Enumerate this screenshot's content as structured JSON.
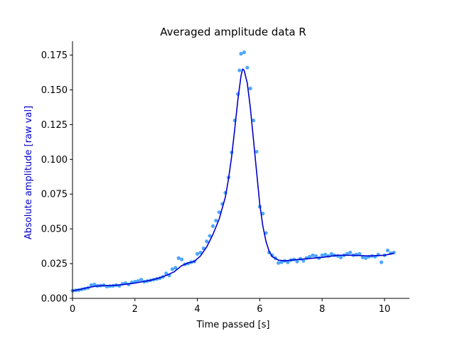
{
  "chart_data": {
    "type": "scatter",
    "title": "Averaged amplitude data R",
    "xlabel": "Time passed [s]",
    "ylabel": "Absolute amplitude [raw val]",
    "xlim": [
      0,
      10.8
    ],
    "ylim": [
      0,
      0.185
    ],
    "xticks": [
      0,
      2,
      4,
      6,
      8,
      10
    ],
    "xtick_labels": [
      "0",
      "2",
      "4",
      "6",
      "8",
      "10"
    ],
    "yticks": [
      0,
      0.025,
      0.05,
      0.075,
      0.1,
      0.125,
      0.15,
      0.175
    ],
    "ytick_labels": [
      "0.000",
      "0.025",
      "0.050",
      "0.075",
      "0.100",
      "0.125",
      "0.150",
      "0.175"
    ],
    "grid": false,
    "colors": {
      "points": "#4da6ff",
      "fit": "#0000cc",
      "ylabel": "#0000cc"
    },
    "series": [
      {
        "type": "scatter",
        "x": [
          0.0,
          0.1,
          0.2,
          0.3,
          0.4,
          0.5,
          0.6,
          0.7,
          0.8,
          0.9,
          1.0,
          1.1,
          1.2,
          1.3,
          1.4,
          1.5,
          1.6,
          1.7,
          1.8,
          1.9,
          2.0,
          2.1,
          2.2,
          2.3,
          2.4,
          2.5,
          2.6,
          2.7,
          2.8,
          2.9,
          3.0,
          3.1,
          3.2,
          3.3,
          3.4,
          3.5,
          3.6,
          3.7,
          3.8,
          3.9,
          4.0,
          4.1,
          4.2,
          4.3,
          4.4,
          4.5,
          4.6,
          4.7,
          4.8,
          4.9,
          5.0,
          5.1,
          5.2,
          5.3,
          5.35,
          5.4,
          5.5,
          5.6,
          5.7,
          5.8,
          5.9,
          6.0,
          6.1,
          6.2,
          6.3,
          6.4,
          6.5,
          6.6,
          6.7,
          6.8,
          6.9,
          7.0,
          7.1,
          7.2,
          7.3,
          7.4,
          7.5,
          7.6,
          7.7,
          7.8,
          7.9,
          8.0,
          8.1,
          8.2,
          8.3,
          8.4,
          8.5,
          8.6,
          8.7,
          8.8,
          8.9,
          9.0,
          9.1,
          9.2,
          9.3,
          9.4,
          9.5,
          9.6,
          9.7,
          9.8,
          9.9,
          10.0,
          10.1,
          10.2,
          10.3
        ],
        "y": [
          0.0055,
          0.0058,
          0.006,
          0.0065,
          0.007,
          0.0075,
          0.0095,
          0.01,
          0.009,
          0.0092,
          0.0095,
          0.0085,
          0.0088,
          0.009,
          0.0095,
          0.009,
          0.0105,
          0.011,
          0.01,
          0.0115,
          0.012,
          0.0125,
          0.0135,
          0.012,
          0.0125,
          0.013,
          0.0135,
          0.014,
          0.0145,
          0.0155,
          0.018,
          0.0165,
          0.021,
          0.022,
          0.029,
          0.028,
          0.0245,
          0.025,
          0.026,
          0.0265,
          0.032,
          0.033,
          0.036,
          0.041,
          0.045,
          0.052,
          0.056,
          0.062,
          0.068,
          0.076,
          0.087,
          0.105,
          0.128,
          0.147,
          0.164,
          0.176,
          0.177,
          0.166,
          0.151,
          0.128,
          0.1055,
          0.066,
          0.061,
          0.047,
          0.033,
          0.031,
          0.029,
          0.0255,
          0.026,
          0.027,
          0.026,
          0.0275,
          0.028,
          0.0265,
          0.0285,
          0.027,
          0.029,
          0.03,
          0.031,
          0.0305,
          0.029,
          0.031,
          0.0315,
          0.0305,
          0.032,
          0.031,
          0.0305,
          0.0295,
          0.031,
          0.032,
          0.033,
          0.031,
          0.0315,
          0.032,
          0.0295,
          0.029,
          0.03,
          0.0305,
          0.03,
          0.0315,
          0.026,
          0.031,
          0.0345,
          0.0325,
          0.033
        ]
      },
      {
        "type": "line",
        "x": [
          0.0,
          0.25,
          0.5,
          0.75,
          1.0,
          1.25,
          1.5,
          1.75,
          2.0,
          2.25,
          2.5,
          2.75,
          3.0,
          3.25,
          3.5,
          3.7,
          3.9,
          4.1,
          4.3,
          4.5,
          4.7,
          4.9,
          5.0,
          5.1,
          5.2,
          5.3,
          5.4,
          5.45,
          5.5,
          5.6,
          5.7,
          5.8,
          5.9,
          6.0,
          6.1,
          6.2,
          6.3,
          6.4,
          6.6,
          6.8,
          7.0,
          7.5,
          8.0,
          8.5,
          9.0,
          9.5,
          10.0,
          10.3
        ],
        "y": [
          0.0055,
          0.0065,
          0.0078,
          0.0088,
          0.0092,
          0.0093,
          0.0096,
          0.0103,
          0.011,
          0.012,
          0.013,
          0.0145,
          0.0165,
          0.019,
          0.0235,
          0.0255,
          0.0265,
          0.0305,
          0.037,
          0.046,
          0.057,
          0.073,
          0.086,
          0.102,
          0.122,
          0.143,
          0.16,
          0.165,
          0.164,
          0.155,
          0.137,
          0.114,
          0.091,
          0.068,
          0.052,
          0.041,
          0.034,
          0.03,
          0.0275,
          0.027,
          0.0275,
          0.0285,
          0.0295,
          0.031,
          0.031,
          0.0305,
          0.031,
          0.0325
        ]
      }
    ]
  }
}
